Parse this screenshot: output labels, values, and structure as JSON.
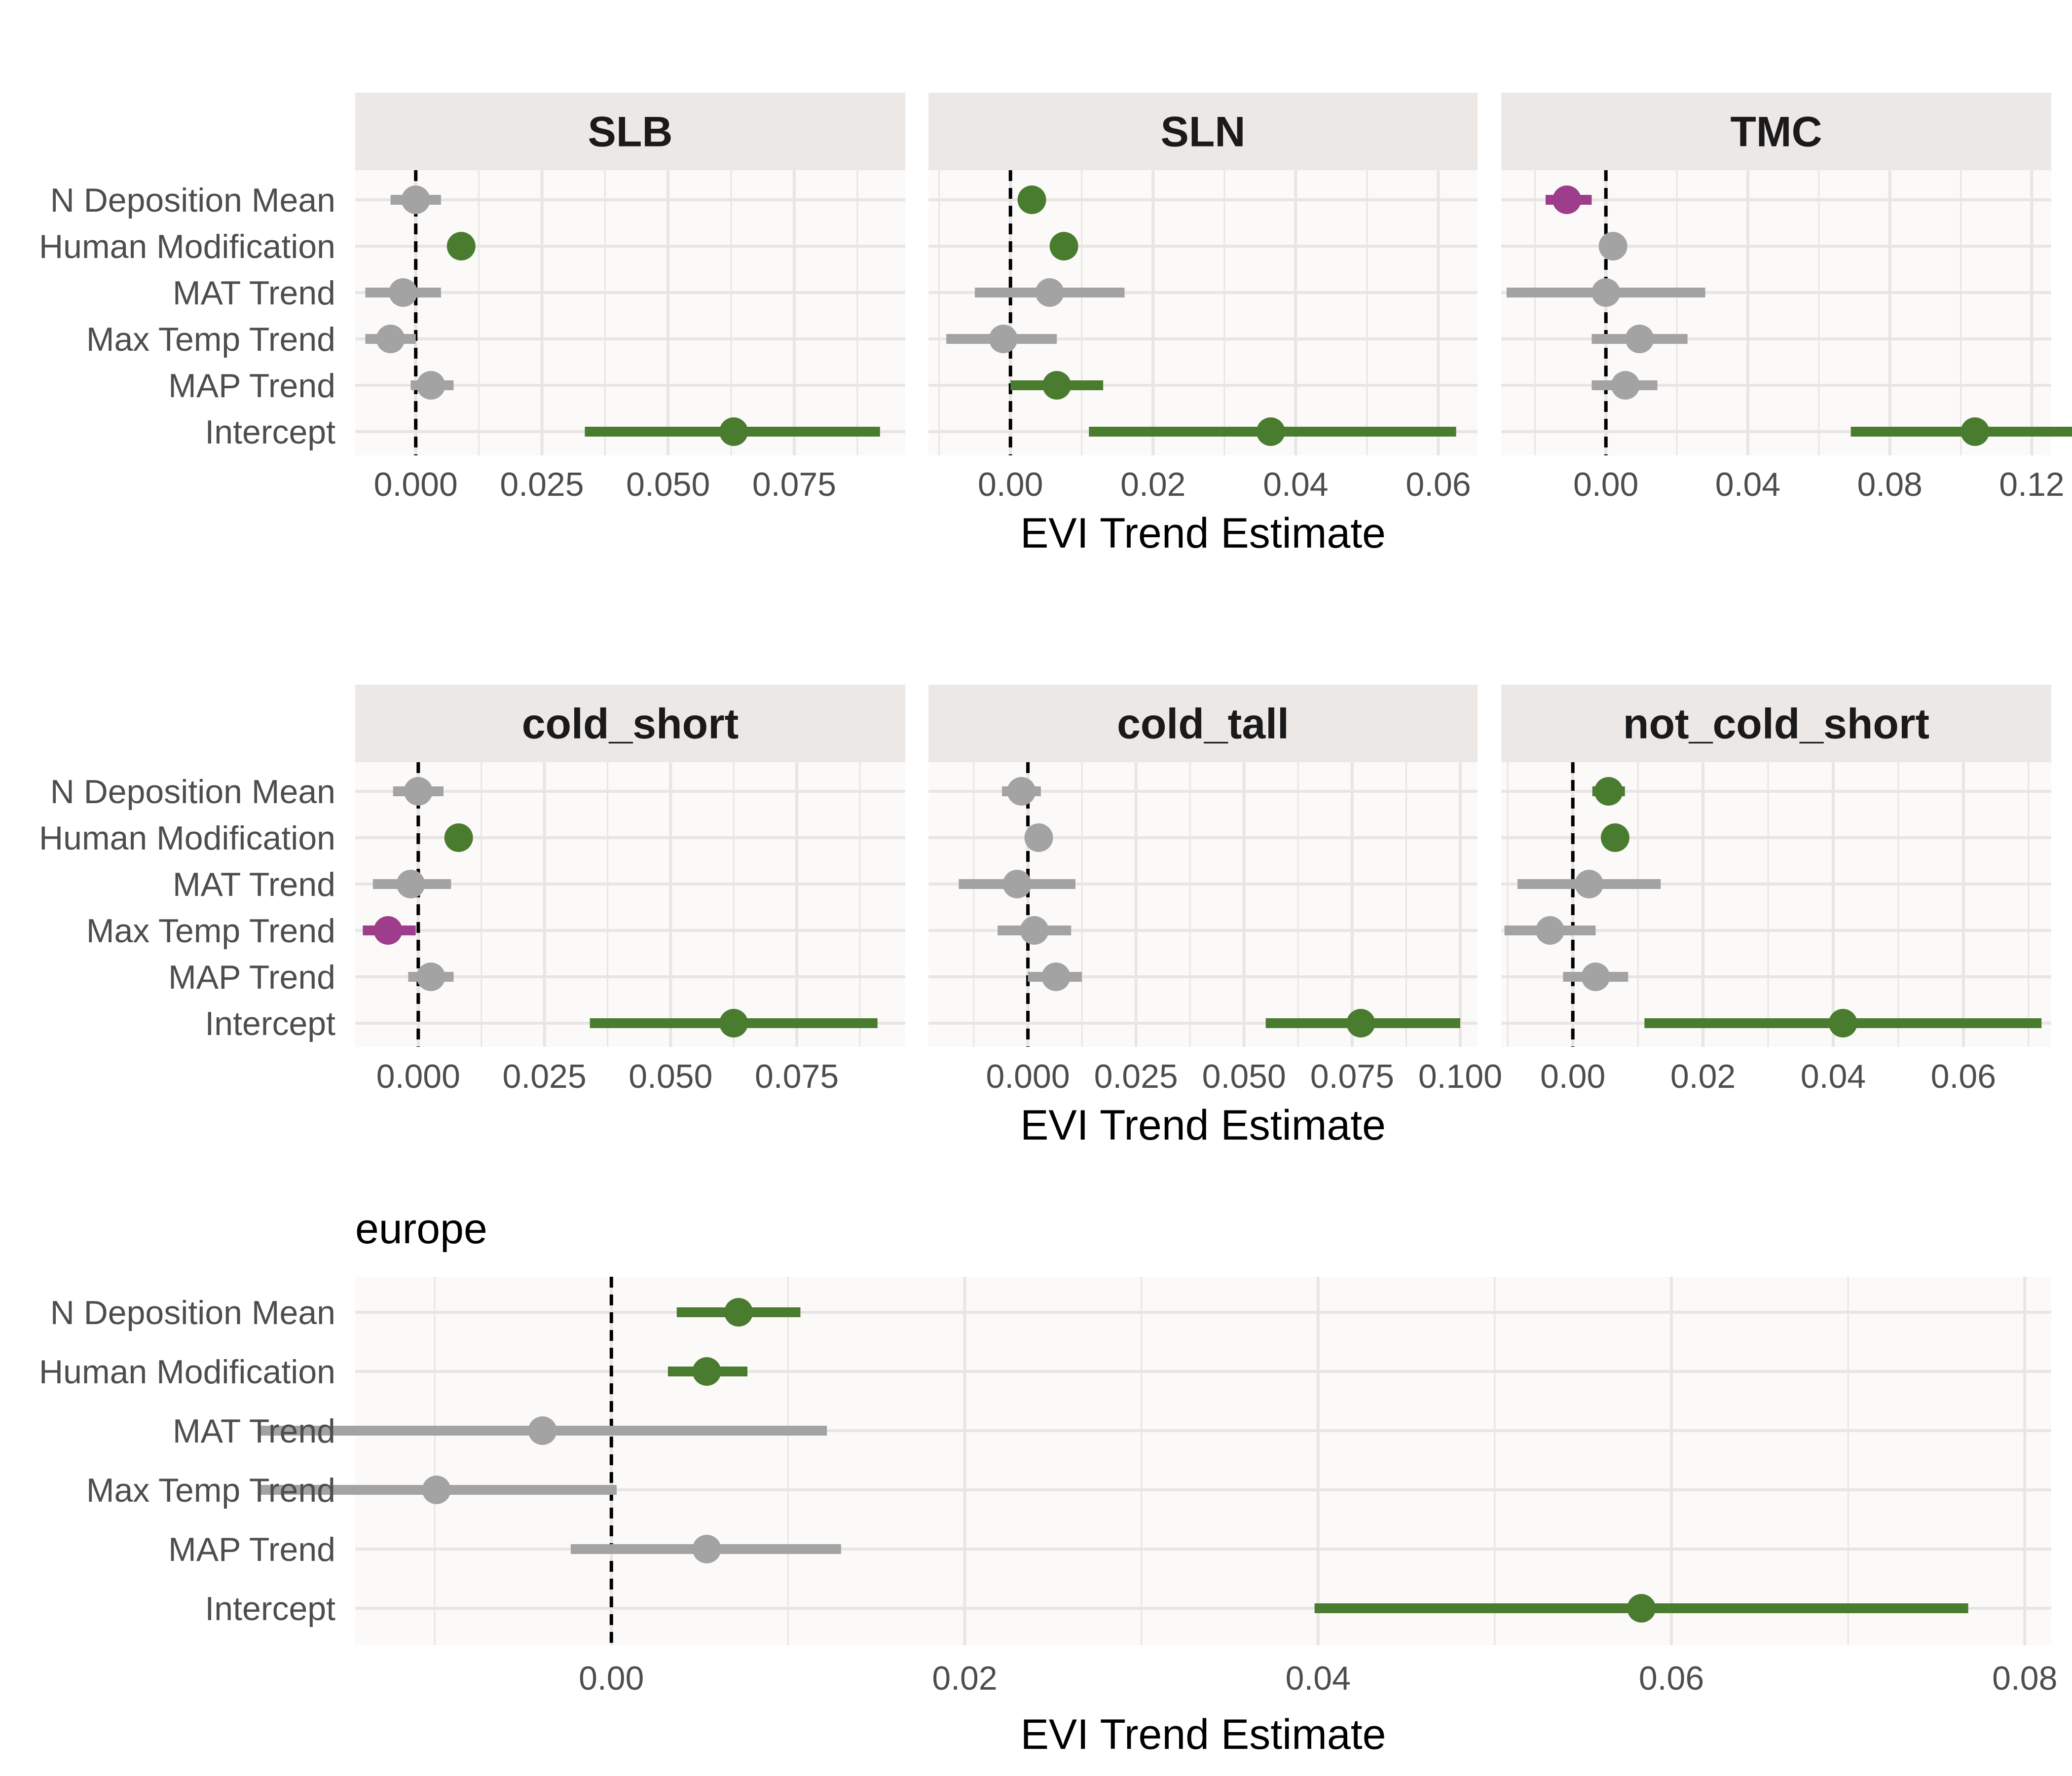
{
  "figure": {
    "xlabel": "EVI Trend Estimate",
    "terms": [
      "N Deposition Mean",
      "Human Modification",
      "MAT Trend",
      "Max Temp Trend",
      "MAP Trend",
      "Intercept"
    ],
    "colors": {
      "significant_positive": "#4a7c2f",
      "significant_negative": "#9e3d8c",
      "not_significant": "#a3a3a3",
      "panel_background": "#fcfaf9",
      "strip_background": "#ebe8e6",
      "grid": "#e8e6e4",
      "text": "#4d4d4d",
      "title_text": "#1a1a1a"
    }
  },
  "chart_data": [
    {
      "type": "scatter",
      "subtype": "coefficient-plot",
      "title": "SLB",
      "xlabel": "",
      "xlim": [
        -0.012,
        0.097
      ],
      "xticks": [
        0.0,
        0.025,
        0.05,
        0.075
      ],
      "tick_labels": [
        "0.000",
        "0.025",
        "0.050",
        "0.075"
      ],
      "rows": [
        {
          "term": "N Deposition Mean",
          "estimate": 0.0,
          "lower": -0.005,
          "upper": 0.005,
          "sig": "not_significant"
        },
        {
          "term": "Human Modification",
          "estimate": 0.009,
          "lower": 0.009,
          "upper": 0.009,
          "sig": "significant_positive"
        },
        {
          "term": "MAT Trend",
          "estimate": -0.0025,
          "lower": -0.01,
          "upper": 0.005,
          "sig": "not_significant"
        },
        {
          "term": "Max Temp Trend",
          "estimate": -0.005,
          "lower": -0.01,
          "upper": 0.0,
          "sig": "not_significant"
        },
        {
          "term": "MAP Trend",
          "estimate": 0.003,
          "lower": -0.001,
          "upper": 0.0075,
          "sig": "not_significant"
        },
        {
          "term": "Intercept",
          "estimate": 0.063,
          "lower": 0.0335,
          "upper": 0.092,
          "sig": "significant_positive"
        }
      ]
    },
    {
      "type": "scatter",
      "subtype": "coefficient-plot",
      "title": "SLN",
      "xlabel": "EVI Trend Estimate",
      "xlim": [
        -0.0115,
        0.0655
      ],
      "xticks": [
        0.0,
        0.02,
        0.04,
        0.06
      ],
      "tick_labels": [
        "0.00",
        "0.02",
        "0.04",
        "0.06"
      ],
      "rows": [
        {
          "term": "N Deposition Mean",
          "estimate": 0.003,
          "lower": 0.003,
          "upper": 0.003,
          "sig": "significant_positive"
        },
        {
          "term": "Human Modification",
          "estimate": 0.0075,
          "lower": 0.0075,
          "upper": 0.0075,
          "sig": "significant_positive"
        },
        {
          "term": "MAT Trend",
          "estimate": 0.0055,
          "lower": -0.005,
          "upper": 0.016,
          "sig": "not_significant"
        },
        {
          "term": "Max Temp Trend",
          "estimate": -0.001,
          "lower": -0.009,
          "upper": 0.0065,
          "sig": "not_significant"
        },
        {
          "term": "MAP Trend",
          "estimate": 0.0065,
          "lower": 0.0,
          "upper": 0.013,
          "sig": "significant_positive"
        },
        {
          "term": "Intercept",
          "estimate": 0.0365,
          "lower": 0.011,
          "upper": 0.0625,
          "sig": "significant_positive"
        }
      ]
    },
    {
      "type": "scatter",
      "subtype": "coefficient-plot",
      "title": "TMC",
      "xlabel": "",
      "xlim": [
        -0.0295,
        0.1255
      ],
      "xticks": [
        0.0,
        0.04,
        0.08,
        0.12
      ],
      "tick_labels": [
        "0.00",
        "0.04",
        "0.08",
        "0.12"
      ],
      "rows": [
        {
          "term": "N Deposition Mean",
          "estimate": -0.011,
          "lower": -0.017,
          "upper": -0.004,
          "sig": "significant_negative"
        },
        {
          "term": "Human Modification",
          "estimate": 0.002,
          "lower": 0.002,
          "upper": 0.002,
          "sig": "not_significant"
        },
        {
          "term": "MAT Trend",
          "estimate": 0.0,
          "lower": -0.028,
          "upper": 0.028,
          "sig": "not_significant"
        },
        {
          "term": "Max Temp Trend",
          "estimate": 0.0095,
          "lower": -0.004,
          "upper": 0.023,
          "sig": "not_significant"
        },
        {
          "term": "MAP Trend",
          "estimate": 0.0055,
          "lower": -0.004,
          "upper": 0.0145,
          "sig": "not_significant"
        },
        {
          "term": "Intercept",
          "estimate": 0.104,
          "lower": 0.069,
          "upper": 0.138,
          "sig": "significant_positive"
        }
      ]
    },
    {
      "type": "scatter",
      "subtype": "coefficient-plot",
      "title": "cold_short",
      "xlabel": "",
      "xlim": [
        -0.0125,
        0.0965
      ],
      "xticks": [
        0.0,
        0.025,
        0.05,
        0.075
      ],
      "tick_labels": [
        "0.000",
        "0.025",
        "0.050",
        "0.075"
      ],
      "rows": [
        {
          "term": "N Deposition Mean",
          "estimate": 0.0,
          "lower": -0.005,
          "upper": 0.005,
          "sig": "not_significant"
        },
        {
          "term": "Human Modification",
          "estimate": 0.008,
          "lower": 0.008,
          "upper": 0.008,
          "sig": "significant_positive"
        },
        {
          "term": "MAT Trend",
          "estimate": -0.0015,
          "lower": -0.009,
          "upper": 0.0065,
          "sig": "not_significant"
        },
        {
          "term": "Max Temp Trend",
          "estimate": -0.006,
          "lower": -0.011,
          "upper": -0.0005,
          "sig": "significant_negative"
        },
        {
          "term": "MAP Trend",
          "estimate": 0.0025,
          "lower": -0.002,
          "upper": 0.007,
          "sig": "not_significant"
        },
        {
          "term": "Intercept",
          "estimate": 0.0625,
          "lower": 0.034,
          "upper": 0.091,
          "sig": "significant_positive"
        }
      ]
    },
    {
      "type": "scatter",
      "subtype": "coefficient-plot",
      "title": "cold_tall",
      "xlabel": "EVI Trend Estimate",
      "xlim": [
        -0.023,
        0.104
      ],
      "xticks": [
        0.0,
        0.025,
        0.05,
        0.075,
        0.1
      ],
      "tick_labels": [
        "0.000",
        "0.025",
        "0.050",
        "0.075",
        "0.100"
      ],
      "rows": [
        {
          "term": "N Deposition Mean",
          "estimate": -0.0015,
          "lower": -0.006,
          "upper": 0.003,
          "sig": "not_significant"
        },
        {
          "term": "Human Modification",
          "estimate": 0.0025,
          "lower": 0.0025,
          "upper": 0.0025,
          "sig": "not_significant"
        },
        {
          "term": "MAT Trend",
          "estimate": -0.0025,
          "lower": -0.016,
          "upper": 0.011,
          "sig": "not_significant"
        },
        {
          "term": "Max Temp Trend",
          "estimate": 0.0015,
          "lower": -0.007,
          "upper": 0.01,
          "sig": "not_significant"
        },
        {
          "term": "MAP Trend",
          "estimate": 0.0065,
          "lower": 0.0,
          "upper": 0.0125,
          "sig": "not_significant"
        },
        {
          "term": "Intercept",
          "estimate": 0.077,
          "lower": 0.055,
          "upper": 0.1,
          "sig": "significant_positive"
        }
      ]
    },
    {
      "type": "scatter",
      "subtype": "coefficient-plot",
      "title": "not_cold_short",
      "xlabel": "",
      "xlim": [
        -0.011,
        0.0735
      ],
      "xticks": [
        0.0,
        0.02,
        0.04,
        0.06
      ],
      "tick_labels": [
        "0.00",
        "0.02",
        "0.04",
        "0.06"
      ],
      "rows": [
        {
          "term": "N Deposition Mean",
          "estimate": 0.0055,
          "lower": 0.003,
          "upper": 0.008,
          "sig": "significant_positive"
        },
        {
          "term": "Human Modification",
          "estimate": 0.0065,
          "lower": 0.0065,
          "upper": 0.0065,
          "sig": "significant_positive"
        },
        {
          "term": "MAT Trend",
          "estimate": 0.0025,
          "lower": -0.0085,
          "upper": 0.0135,
          "sig": "not_significant"
        },
        {
          "term": "Max Temp Trend",
          "estimate": -0.0035,
          "lower": -0.0105,
          "upper": 0.0035,
          "sig": "not_significant"
        },
        {
          "term": "MAP Trend",
          "estimate": 0.0035,
          "lower": -0.0015,
          "upper": 0.0085,
          "sig": "not_significant"
        },
        {
          "term": "Intercept",
          "estimate": 0.0415,
          "lower": 0.011,
          "upper": 0.072,
          "sig": "significant_positive"
        }
      ]
    },
    {
      "type": "scatter",
      "subtype": "coefficient-plot",
      "title": "europe",
      "xlabel": "EVI Trend Estimate",
      "xlim": [
        -0.0145,
        0.0815
      ],
      "xticks": [
        0.0,
        0.02,
        0.04,
        0.06,
        0.08
      ],
      "tick_labels": [
        "0.00",
        "0.02",
        "0.04",
        "0.06",
        "0.08"
      ],
      "rows": [
        {
          "term": "N Deposition Mean",
          "estimate": 0.0072,
          "lower": 0.0037,
          "upper": 0.0107,
          "sig": "significant_positive"
        },
        {
          "term": "Human Modification",
          "estimate": 0.0054,
          "lower": 0.0032,
          "upper": 0.0077,
          "sig": "significant_positive"
        },
        {
          "term": "MAT Trend",
          "estimate": -0.0039,
          "lower": -0.02,
          "upper": 0.0122,
          "sig": "not_significant"
        },
        {
          "term": "Max Temp Trend",
          "estimate": -0.0099,
          "lower": -0.02,
          "upper": 0.0003,
          "sig": "not_significant"
        },
        {
          "term": "MAP Trend",
          "estimate": 0.0054,
          "lower": -0.0023,
          "upper": 0.013,
          "sig": "not_significant"
        },
        {
          "term": "Intercept",
          "estimate": 0.0583,
          "lower": 0.0398,
          "upper": 0.0768,
          "sig": "significant_positive"
        }
      ]
    }
  ]
}
